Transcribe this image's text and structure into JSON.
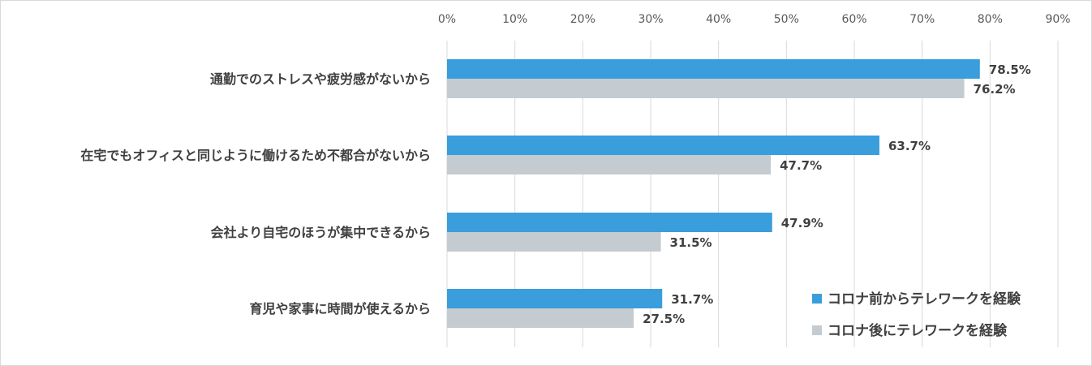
{
  "chart_data": {
    "type": "bar",
    "orientation": "horizontal",
    "categories": [
      "通勤でのストレスや疲労感がないから",
      "在宅でもオフィスと同じように働けるため不都合がないから",
      "会社より自宅のほうが集中できるから",
      "育児や家事に時間が使えるから"
    ],
    "series": [
      {
        "name": "コロナ前からテレワークを経験",
        "color": "#3a9ddc",
        "values": [
          78.5,
          63.7,
          47.9,
          31.7
        ],
        "labels": [
          "78.5%",
          "63.7%",
          "47.9%",
          "31.7%"
        ]
      },
      {
        "name": "コロナ後にテレワークを経験",
        "color": "#c4cbd1",
        "values": [
          76.2,
          47.7,
          31.5,
          27.5
        ],
        "labels": [
          "76.2%",
          "47.7%",
          "31.5%",
          "27.5%"
        ]
      }
    ],
    "x_ticks": [
      "0%",
      "10%",
      "20%",
      "30%",
      "40%",
      "50%",
      "60%",
      "70%",
      "80%",
      "90%"
    ],
    "xlim": [
      0,
      90
    ],
    "x_axis_position": "top",
    "grid": true,
    "legend_position": "bottom-right",
    "title": "",
    "xlabel": "",
    "ylabel": ""
  }
}
